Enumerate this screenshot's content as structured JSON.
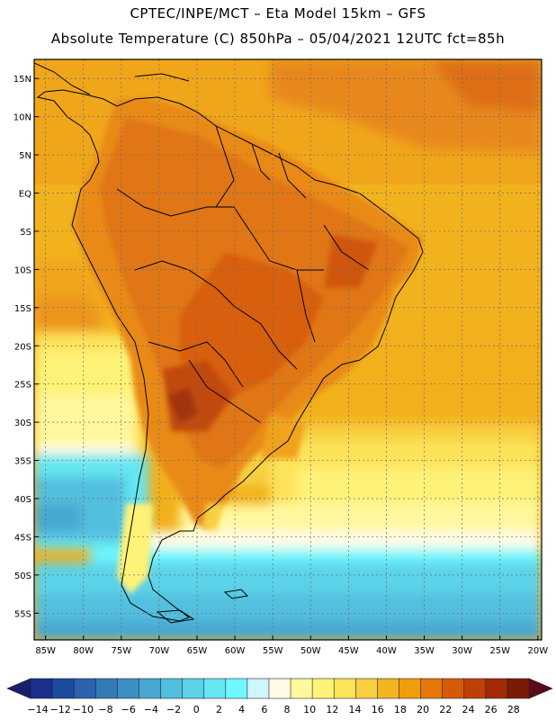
{
  "header": {
    "line1": "CPTEC/INPE/MCT –  Eta Model 15km – GFS",
    "line2": "Absolute Temperature (C) 850hPa – 05/04/2021 12UTC fct=85h"
  },
  "map": {
    "region": "South America",
    "lat_labels": [
      "15N",
      "10N",
      "5N",
      "EQ",
      "5S",
      "10S",
      "15S",
      "20S",
      "25S",
      "30S",
      "35S",
      "40S",
      "45S",
      "50S",
      "55S"
    ],
    "lon_labels": [
      "85W",
      "80W",
      "75W",
      "70W",
      "65W",
      "60W",
      "55W",
      "50W",
      "45W",
      "40W",
      "35W",
      "30W",
      "25W",
      "20W"
    ],
    "lat_range": [
      17.5,
      -58.5
    ],
    "lon_range": [
      -86.5,
      -19.5
    ],
    "grid_spacing_deg": 5
  },
  "colorbar": {
    "labels": [
      "-14",
      "-12",
      "-10",
      "-8",
      "-6",
      "-4",
      "-2",
      "0",
      "2",
      "4",
      "6",
      "8",
      "10",
      "12",
      "14",
      "16",
      "18",
      "20",
      "22",
      "24",
      "26",
      "28"
    ],
    "colors": [
      "#1a2f8e",
      "#1e4aa0",
      "#2a62ae",
      "#3479b8",
      "#3c90c4",
      "#46a8d2",
      "#52bfde",
      "#5cd3e8",
      "#66e6f2",
      "#6ff8ff",
      "#cff6ff",
      "#fffbe6",
      "#fff89e",
      "#fff278",
      "#fde35a",
      "#f8cf40",
      "#f2b520",
      "#f09e0c",
      "#e4760a",
      "#d55a08",
      "#c03f06",
      "#a22a05",
      "#7c1a08"
    ],
    "end_colors": {
      "low": "#161f6e",
      "high": "#5a0a18"
    }
  },
  "land_colors": {
    "hot": "#e07612",
    "very_hot": "#c24a0c",
    "warm": "#f2a21e",
    "mild": "#f2b61e",
    "ocean_north": "#f2ac18"
  }
}
